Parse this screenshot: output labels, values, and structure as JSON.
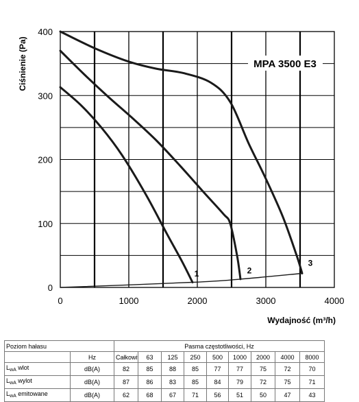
{
  "chart_data": {
    "type": "line",
    "title": "MPA 3500 E3",
    "xlabel": "Wydajność (m³/h)",
    "ylabel": "Ciśnienie (Pa)",
    "xlim": [
      0,
      4000
    ],
    "ylim": [
      0,
      400
    ],
    "x_ticks": [
      "0",
      "1000",
      "2000",
      "3000",
      "4000"
    ],
    "y_ticks": [
      "0",
      "100",
      "200",
      "300",
      "400"
    ],
    "grid": true,
    "series": [
      {
        "name": "1",
        "points": [
          [
            0,
            313
          ],
          [
            300,
            285
          ],
          [
            600,
            250
          ],
          [
            900,
            207
          ],
          [
            1250,
            145
          ],
          [
            1550,
            85
          ],
          [
            1780,
            40
          ],
          [
            1930,
            8
          ]
        ]
      },
      {
        "name": "2",
        "points": [
          [
            0,
            370
          ],
          [
            350,
            333
          ],
          [
            700,
            298
          ],
          [
            1050,
            265
          ],
          [
            1400,
            230
          ],
          [
            1750,
            190
          ],
          [
            2100,
            148
          ],
          [
            2380,
            115
          ],
          [
            2480,
            100
          ],
          [
            2580,
            50
          ],
          [
            2630,
            13
          ]
        ]
      },
      {
        "name": "3",
        "points": [
          [
            0,
            400
          ],
          [
            500,
            374
          ],
          [
            1000,
            353
          ],
          [
            1400,
            342
          ],
          [
            1800,
            335
          ],
          [
            2200,
            320
          ],
          [
            2480,
            290
          ],
          [
            2750,
            225
          ],
          [
            3000,
            170
          ],
          [
            3250,
            110
          ],
          [
            3450,
            50
          ],
          [
            3530,
            22
          ]
        ]
      },
      {
        "name": "system",
        "points": [
          [
            0,
            0
          ],
          [
            1930,
            8
          ],
          [
            2630,
            13
          ],
          [
            3530,
            22
          ]
        ]
      }
    ],
    "curve_labels": [
      {
        "text": "1",
        "x": 1990,
        "y": 17
      },
      {
        "text": "2",
        "x": 2760,
        "y": 22
      },
      {
        "text": "3",
        "x": 3650,
        "y": 34
      }
    ]
  },
  "noise_table": {
    "title_left": "Poziom hałasu",
    "title_right": "Pasma częstotliwości, Hz",
    "unit_header": "Hz",
    "columns": [
      "Całkowita",
      "63",
      "125",
      "250",
      "500",
      "1000",
      "2000",
      "4000",
      "8000"
    ],
    "rows": [
      {
        "label": "L",
        "sub": "wA",
        "suffix": " wlot",
        "unit": "dB(A)",
        "values": [
          "82",
          "85",
          "88",
          "85",
          "77",
          "77",
          "75",
          "72",
          "70"
        ]
      },
      {
        "label": "L",
        "sub": "wA",
        "suffix": " wylot",
        "unit": "dB(A)",
        "values": [
          "87",
          "86",
          "83",
          "85",
          "84",
          "79",
          "72",
          "75",
          "71"
        ]
      },
      {
        "label": "L",
        "sub": "wA",
        "suffix": " emitowane",
        "unit": "dB(A)",
        "values": [
          "62",
          "68",
          "67",
          "71",
          "56",
          "51",
          "50",
          "47",
          "43"
        ]
      }
    ]
  }
}
